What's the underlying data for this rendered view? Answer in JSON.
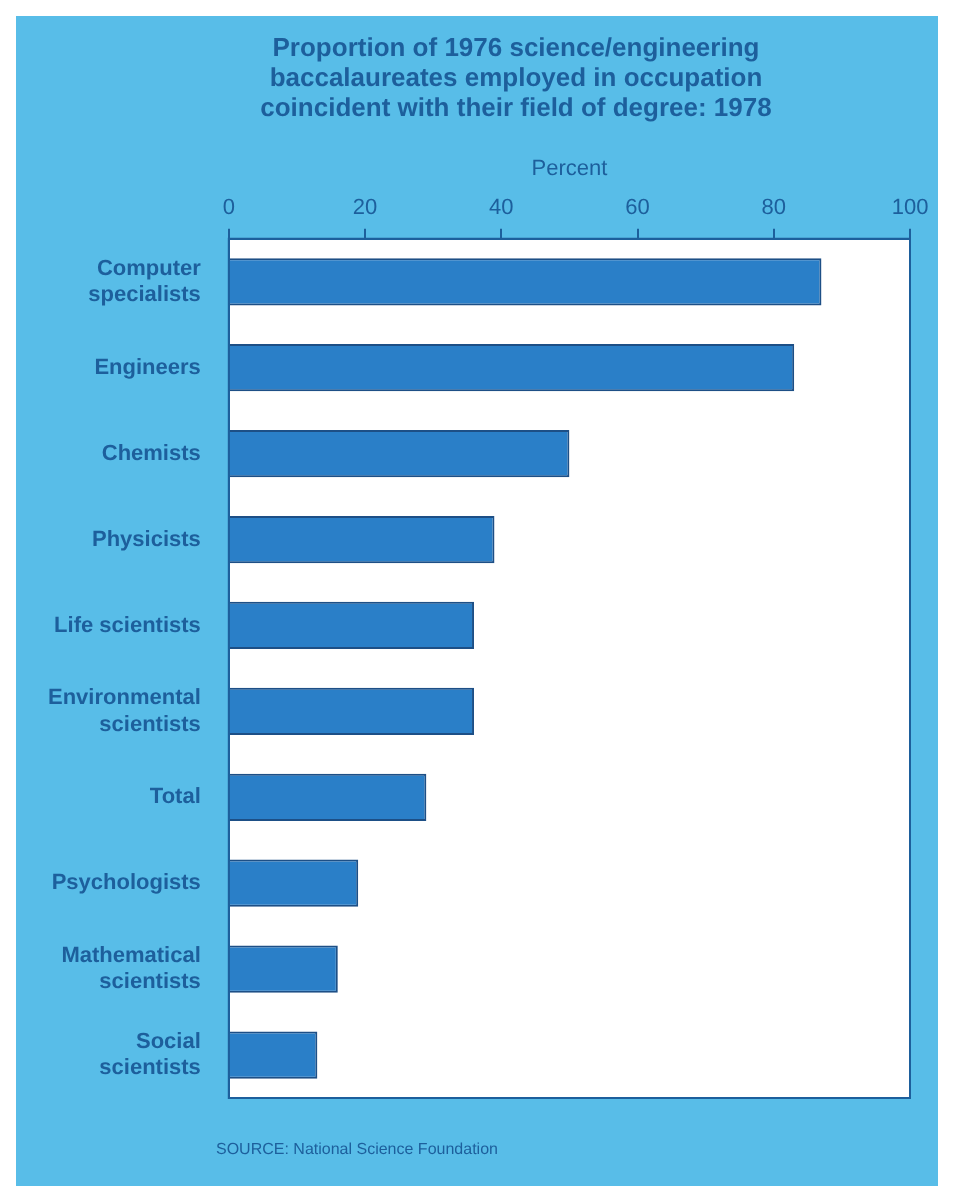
{
  "chart_data": {
    "type": "bar",
    "orientation": "horizontal",
    "title": "Proportion of 1976 science/engineering baccalaureates employed in occupation coincident with their field of degree: 1978",
    "xlabel": "Percent",
    "categories": [
      "Computer specialists",
      "Engineers",
      "Chemists",
      "Physicists",
      "Life scientists",
      "Environmental scientists",
      "Total",
      "Psychologists",
      "Mathematical scientists",
      "Social scientists"
    ],
    "values": [
      87,
      83,
      50,
      39,
      36,
      36,
      29,
      19,
      16,
      13
    ],
    "color": "#2a7fc8",
    "xlim": [
      0,
      100
    ],
    "xticks": [
      0,
      20,
      40,
      60,
      80,
      100
    ],
    "grid": false,
    "legend": false,
    "annotations": [
      "SOURCE: National Science Foundation"
    ]
  }
}
